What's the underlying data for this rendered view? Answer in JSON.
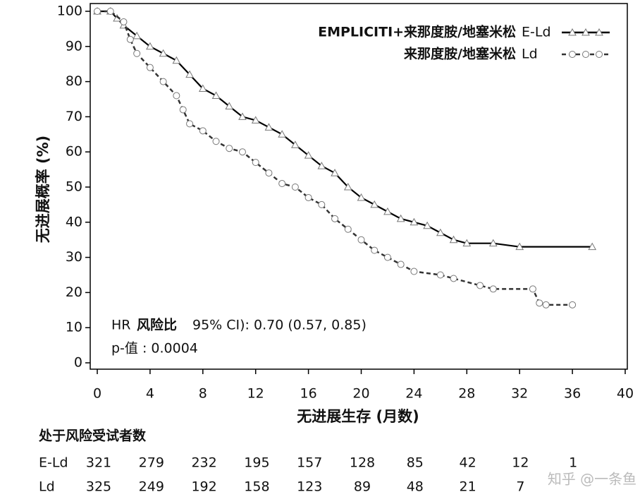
{
  "chart_data": {
    "type": "line",
    "xlabel": "无进展生存 (月数)",
    "ylabel": "无进展概率 (%)",
    "xlim": [
      0,
      40
    ],
    "xticks": [
      0,
      4,
      8,
      12,
      16,
      20,
      24,
      28,
      32,
      36,
      40
    ],
    "ylim": [
      0,
      100
    ],
    "yticks": [
      0,
      10,
      20,
      30,
      40,
      50,
      60,
      70,
      80,
      90,
      100
    ],
    "series": [
      {
        "name": "E-Ld",
        "description": "EMPLICITI+来那度胺/地塞米松",
        "color": "#000000",
        "marker": "triangle",
        "dash": "solid",
        "x": [
          0,
          1,
          1.5,
          2,
          3,
          4,
          5,
          6,
          7,
          8,
          9,
          10,
          11,
          12,
          13,
          14,
          15,
          16,
          17,
          18,
          19,
          20,
          21,
          22,
          23,
          24,
          25,
          26,
          27,
          28,
          30,
          32,
          37.5
        ],
        "values": [
          100,
          100,
          98,
          96,
          93,
          90,
          88,
          86,
          82,
          78,
          76,
          73,
          70,
          69,
          67,
          65,
          62,
          59,
          56,
          54,
          50,
          47,
          45,
          43,
          41,
          40,
          39,
          37,
          35,
          34,
          34,
          33,
          33
        ]
      },
      {
        "name": "Ld",
        "description": "来那度胺/地塞米松",
        "color": "#333333",
        "marker": "circle",
        "dash": "dashed",
        "x": [
          0,
          1,
          2,
          2.5,
          3,
          4,
          5,
          6,
          6.5,
          7,
          8,
          9,
          10,
          11,
          12,
          13,
          14,
          15,
          16,
          17,
          18,
          19,
          20,
          21,
          22,
          23,
          24,
          26,
          27,
          29,
          30,
          33,
          33.5,
          34,
          36
        ],
        "values": [
          100,
          100,
          97,
          92,
          88,
          84,
          80,
          76,
          72,
          68,
          66,
          63,
          61,
          60,
          57,
          54,
          51,
          50,
          47,
          45,
          41,
          38,
          35,
          32,
          30,
          28,
          26,
          25,
          24,
          22,
          21,
          21,
          17,
          16.5,
          16.5
        ]
      }
    ],
    "annotations": [
      "HR",
      "风险比",
      "95% CI): 0.70 (0.57, 0.85)",
      "p-值 : 0.0004"
    ]
  },
  "risk_table": {
    "title": "处于风险受试者数",
    "rows": [
      {
        "label": "E-Ld",
        "counts": [
          321,
          279,
          232,
          195,
          157,
          128,
          85,
          42,
          12,
          1
        ]
      },
      {
        "label": "Ld",
        "counts": [
          325,
          249,
          192,
          158,
          123,
          89,
          48,
          21,
          7,
          null
        ]
      }
    ]
  },
  "watermark": "知乎 @一条鱼"
}
